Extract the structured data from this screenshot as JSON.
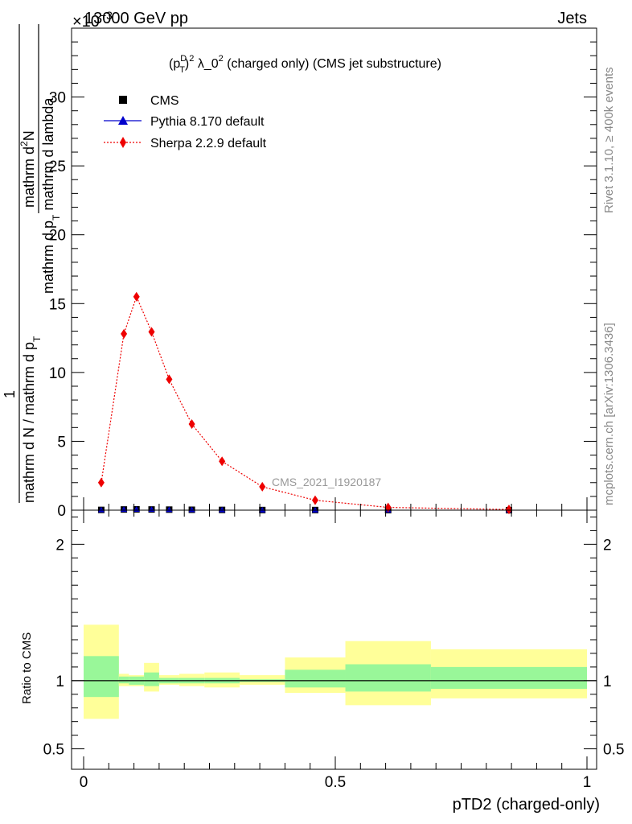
{
  "chart_data": {
    "type": "line",
    "header": {
      "left": "13000 GeV pp",
      "right": "Jets",
      "exponent": "×10",
      "exponent_power": "−3"
    },
    "title": {
      "pre": "(p",
      "sup1": "D",
      "sub1": "T",
      "mid": ")",
      "sup2": "2",
      "lambda": " λ_0",
      "sup3": "2",
      "post": " (charged only) (CMS jet substructure)"
    },
    "ylabel": {
      "inner_num": "mathrm d",
      "inner_num_sup": "2",
      "inner_num_end": "N",
      "inner_den_a": "mathrm d p",
      "inner_den_sub": "T",
      "inner_den_b": " mathrm d lambda",
      "outer_num": "1",
      "outer_den_a": "mathrm d N / mathrm d p",
      "outer_den_sub": "T"
    },
    "xlabel": "pTD2 (charged-only)",
    "ratio_ylabel": "Ratio to CMS",
    "watermark": "CMS_2021_I1920187",
    "side_top": "Rivet 3.1.10, ≥ 400k events",
    "side_bottom": "mcplots.cern.ch [arXiv:1306.3436]",
    "ylim": [
      0,
      35
    ],
    "xlim": [
      0,
      1
    ],
    "ratio_ylim": [
      0.35,
      2.25
    ],
    "main_yticks": [
      0,
      5,
      10,
      15,
      20,
      25,
      30
    ],
    "main_ytick_labels": [
      "0",
      "5",
      "10",
      "15",
      "20",
      "25",
      "30"
    ],
    "xticks": [
      0,
      0.5,
      1
    ],
    "xtick_labels": [
      "0",
      "0.5",
      "1"
    ],
    "ratio_yticks": [
      0.5,
      1,
      2
    ],
    "ratio_ytick_labels": [
      "0.5",
      "1",
      "2"
    ],
    "legend": [
      {
        "label": "CMS",
        "marker": "square",
        "color": "#000000"
      },
      {
        "label": "Pythia 8.170 default",
        "marker": "triangle",
        "color": "#0000cc"
      },
      {
        "label": "Sherpa 2.2.9 default",
        "marker": "diamond",
        "color": "#ee0000"
      }
    ],
    "x": [
      0.035,
      0.08,
      0.105,
      0.135,
      0.17,
      0.215,
      0.275,
      0.355,
      0.46,
      0.605,
      0.845
    ],
    "bin_edges": [
      0,
      0.07,
      0.09,
      0.12,
      0.15,
      0.19,
      0.24,
      0.31,
      0.4,
      0.52,
      0.69,
      1.0
    ],
    "series": [
      {
        "name": "CMS",
        "values": [
          0.02,
          0.05,
          0.06,
          0.05,
          0.04,
          0.03,
          0.02,
          0.01,
          0.01,
          0.005,
          0.002
        ]
      },
      {
        "name": "Pythia 8.170 default",
        "values": [
          0.02,
          0.05,
          0.06,
          0.05,
          0.04,
          0.03,
          0.02,
          0.01,
          0.01,
          0.005,
          0.002
        ]
      },
      {
        "name": "Sherpa 2.2.9 default",
        "values": [
          2.0,
          12.8,
          15.5,
          12.95,
          9.5,
          6.25,
          3.55,
          1.7,
          0.72,
          0.2,
          0.05
        ]
      }
    ],
    "ratio_bands": {
      "stat_low": [
        0.88,
        0.98,
        0.97,
        0.96,
        0.98,
        0.98,
        0.98,
        0.99,
        0.95,
        0.92,
        0.94
      ],
      "stat_high": [
        1.18,
        1.03,
        1.03,
        1.06,
        1.02,
        1.02,
        1.02,
        1.01,
        1.08,
        1.12,
        1.1
      ],
      "tot_low": [
        0.72,
        0.96,
        0.96,
        0.92,
        0.97,
        0.96,
        0.95,
        0.97,
        0.91,
        0.82,
        0.87
      ],
      "tot_high": [
        1.41,
        1.05,
        1.04,
        1.13,
        1.04,
        1.05,
        1.06,
        1.04,
        1.17,
        1.29,
        1.23
      ]
    }
  },
  "colors": {
    "cms": "#000000",
    "pythia": "#0000cc",
    "sherpa": "#ee0000",
    "band_stat": "#99f799",
    "band_tot": "#ffff99",
    "side_text": "#888888"
  }
}
